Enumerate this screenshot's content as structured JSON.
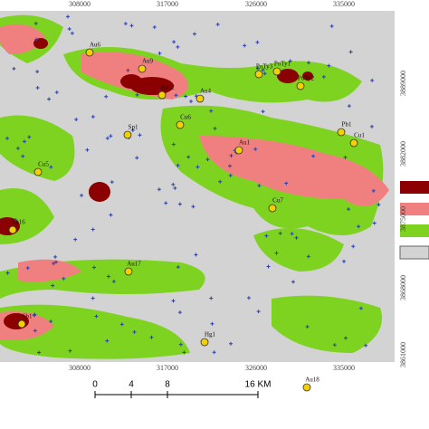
{
  "axes": {
    "top": [
      "308000",
      "317000",
      "326000",
      "335000"
    ],
    "bottom": [
      "308000",
      "317000",
      "326000",
      "335000"
    ],
    "right": [
      "3889000",
      "3882000",
      "3875000",
      "3868000",
      "3861000"
    ]
  },
  "sites": [
    "Au6",
    "Au9",
    "Au12",
    "Au4",
    "Au1",
    "Cu6",
    "Cu7",
    "Cu5",
    "Au16",
    "Au17",
    "Au18",
    "Sb1",
    "Hg1",
    "Pb1",
    "Cu1",
    "PoTy3",
    "PoTy1",
    "PoTy2",
    "Sp1"
  ],
  "scale_bar": {
    "ticks": [
      "0",
      "4",
      "8"
    ],
    "end_label": "16 KM"
  }
}
